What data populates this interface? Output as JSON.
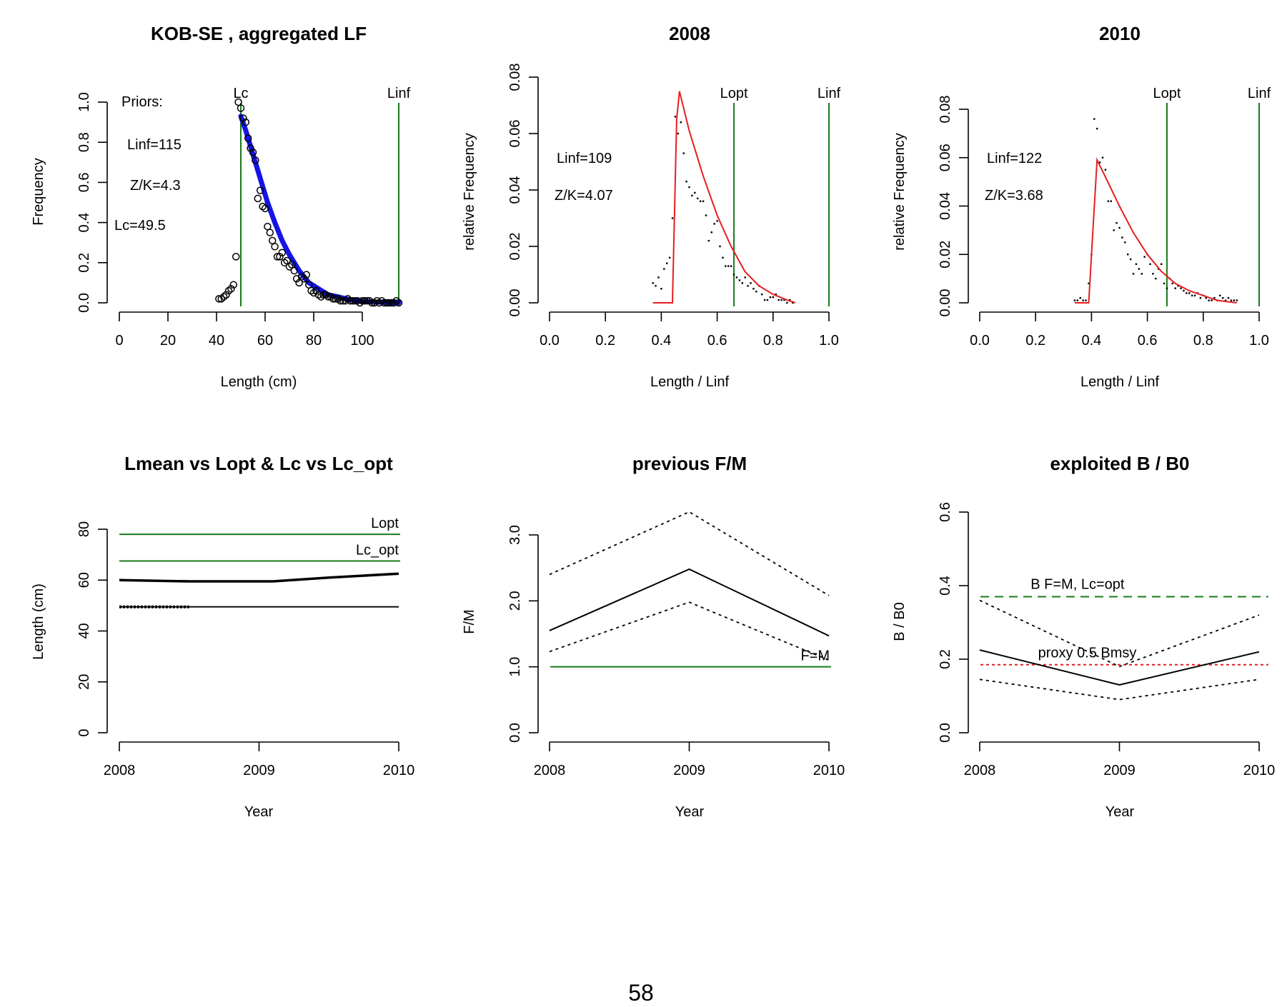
{
  "page_number": "58",
  "chart_data": [
    {
      "type": "scatter",
      "title": "KOB-SE , aggregated LF",
      "xlabel": "Length (cm)",
      "ylabel": "Frequency",
      "xlim": [
        0,
        115
      ],
      "ylim": [
        0,
        1.0
      ],
      "xticks": [
        0,
        20,
        40,
        60,
        80,
        100
      ],
      "yticks": [
        0.0,
        0.2,
        0.4,
        0.6,
        0.8,
        1.0
      ],
      "ytick_labels": [
        "0.0",
        "0.2",
        "0.4",
        "0.6",
        "0.8",
        "1.0"
      ],
      "points": {
        "x": [
          41,
          42,
          43,
          44,
          45,
          46,
          47,
          48,
          49,
          50,
          51,
          52,
          53,
          54,
          55,
          56,
          57,
          58,
          59,
          60,
          61,
          62,
          63,
          64,
          65,
          66,
          67,
          68,
          69,
          70,
          71,
          72,
          73,
          74,
          75,
          76,
          77,
          78,
          79,
          80,
          81,
          82,
          83,
          84,
          85,
          86,
          87,
          88,
          89,
          90,
          91,
          92,
          93,
          94,
          95,
          96,
          97,
          98,
          99,
          100,
          101,
          102,
          103,
          104,
          105,
          106,
          107,
          108,
          109,
          110,
          111,
          112,
          113,
          114,
          115
        ],
        "y": [
          0.02,
          0.02,
          0.03,
          0.04,
          0.06,
          0.07,
          0.09,
          0.23,
          1.0,
          0.97,
          0.92,
          0.9,
          0.82,
          0.77,
          0.75,
          0.71,
          0.52,
          0.56,
          0.48,
          0.47,
          0.38,
          0.35,
          0.31,
          0.28,
          0.23,
          0.23,
          0.25,
          0.2,
          0.21,
          0.18,
          0.19,
          0.16,
          0.12,
          0.1,
          0.13,
          0.12,
          0.14,
          0.09,
          0.06,
          0.05,
          0.06,
          0.04,
          0.03,
          0.04,
          0.04,
          0.03,
          0.03,
          0.02,
          0.02,
          0.02,
          0.01,
          0.01,
          0.01,
          0.02,
          0.01,
          0.01,
          0.01,
          0.01,
          0.0,
          0.01,
          0.01,
          0.01,
          0.01,
          0.0,
          0.0,
          0.01,
          0.0,
          0.01,
          0.0,
          0.0,
          0.0,
          0.0,
          0.0,
          0.01,
          0.0
        ]
      },
      "fit": {
        "x": [
          50,
          52,
          55,
          58,
          61,
          64,
          67,
          70,
          74,
          78,
          82,
          86,
          90,
          95,
          100,
          105,
          110,
          115
        ],
        "y": [
          0.93,
          0.86,
          0.74,
          0.62,
          0.5,
          0.4,
          0.31,
          0.24,
          0.16,
          0.1,
          0.07,
          0.04,
          0.03,
          0.015,
          0.008,
          0.004,
          0.002,
          0.001
        ]
      },
      "vlines": [
        {
          "x": 50,
          "label": "Lc"
        },
        {
          "x": 115,
          "label": "Linf"
        }
      ],
      "annotations": [
        "Priors:",
        "Linf=115",
        "Z/K=4.3",
        "Lc=49.5"
      ]
    },
    {
      "type": "line",
      "title": "2008",
      "xlabel": "Length / Linf",
      "ylabel": "relative Frequency",
      "xlim": [
        0,
        1.0
      ],
      "ylim": [
        0,
        0.08
      ],
      "xticks": [
        0.0,
        0.2,
        0.4,
        0.6,
        0.8,
        1.0
      ],
      "xtick_labels": [
        "0.0",
        "0.2",
        "0.4",
        "0.6",
        "0.8",
        "1.0"
      ],
      "yticks": [
        0.0,
        0.02,
        0.04,
        0.06,
        0.08
      ],
      "ytick_labels": [
        "0.00",
        "0.02",
        "0.04",
        "0.06",
        "0.08"
      ],
      "points": {
        "x": [
          0.37,
          0.38,
          0.39,
          0.4,
          0.41,
          0.42,
          0.43,
          0.44,
          0.45,
          0.46,
          0.47,
          0.48,
          0.49,
          0.5,
          0.51,
          0.52,
          0.53,
          0.54,
          0.55,
          0.56,
          0.57,
          0.58,
          0.59,
          0.6,
          0.61,
          0.62,
          0.63,
          0.64,
          0.65,
          0.66,
          0.67,
          0.68,
          0.69,
          0.7,
          0.71,
          0.72,
          0.73,
          0.74,
          0.75,
          0.76,
          0.77,
          0.78,
          0.79,
          0.8,
          0.81,
          0.82,
          0.83,
          0.84,
          0.85,
          0.86,
          0.87
        ],
        "y": [
          0.007,
          0.006,
          0.009,
          0.005,
          0.012,
          0.014,
          0.016,
          0.03,
          0.066,
          0.06,
          0.064,
          0.053,
          0.043,
          0.041,
          0.038,
          0.039,
          0.037,
          0.036,
          0.036,
          0.031,
          0.022,
          0.025,
          0.028,
          0.029,
          0.02,
          0.016,
          0.013,
          0.013,
          0.013,
          0.01,
          0.009,
          0.008,
          0.007,
          0.009,
          0.006,
          0.007,
          0.005,
          0.004,
          0.006,
          0.003,
          0.001,
          0.001,
          0.002,
          0.002,
          0.003,
          0.001,
          0.001,
          0.001,
          0.0,
          0.001,
          0.0
        ]
      },
      "fit": {
        "x": [
          0.37,
          0.44,
          0.455,
          0.465,
          0.5,
          0.55,
          0.6,
          0.65,
          0.7,
          0.75,
          0.8,
          0.85,
          0.88
        ],
        "y": [
          0.0,
          0.0,
          0.065,
          0.075,
          0.061,
          0.045,
          0.031,
          0.02,
          0.011,
          0.006,
          0.003,
          0.001,
          0.0
        ]
      },
      "vlines": [
        {
          "x": 0.66,
          "label": "Lopt"
        },
        {
          "x": 1.0,
          "label": "Linf"
        }
      ],
      "annotations": [
        "Linf=109",
        "Z/K=4.07"
      ]
    },
    {
      "type": "line",
      "title": "2010",
      "xlabel": "Length / Linf",
      "ylabel": "relative Frequency",
      "xlim": [
        0,
        1.0
      ],
      "ylim": [
        0,
        0.08
      ],
      "xticks": [
        0.0,
        0.2,
        0.4,
        0.6,
        0.8,
        1.0
      ],
      "xtick_labels": [
        "0.0",
        "0.2",
        "0.4",
        "0.6",
        "0.8",
        "1.0"
      ],
      "yticks": [
        0.0,
        0.02,
        0.04,
        0.06,
        0.08
      ],
      "ytick_labels": [
        "0.00",
        "0.02",
        "0.04",
        "0.06",
        "0.08"
      ],
      "points": {
        "x": [
          0.34,
          0.35,
          0.36,
          0.37,
          0.38,
          0.39,
          0.4,
          0.41,
          0.42,
          0.43,
          0.44,
          0.45,
          0.46,
          0.47,
          0.48,
          0.49,
          0.5,
          0.51,
          0.52,
          0.53,
          0.54,
          0.55,
          0.56,
          0.57,
          0.58,
          0.59,
          0.6,
          0.61,
          0.62,
          0.63,
          0.64,
          0.65,
          0.66,
          0.67,
          0.68,
          0.69,
          0.7,
          0.71,
          0.72,
          0.73,
          0.74,
          0.75,
          0.76,
          0.77,
          0.78,
          0.79,
          0.8,
          0.81,
          0.82,
          0.83,
          0.84,
          0.85,
          0.86,
          0.87,
          0.88,
          0.89,
          0.9,
          0.91,
          0.92
        ],
        "y": [
          0.001,
          0.001,
          0.002,
          0.001,
          0.001,
          0.008,
          0.02,
          0.076,
          0.072,
          0.058,
          0.06,
          0.055,
          0.042,
          0.042,
          0.03,
          0.033,
          0.031,
          0.027,
          0.025,
          0.02,
          0.018,
          0.012,
          0.016,
          0.014,
          0.012,
          0.019,
          0.02,
          0.016,
          0.012,
          0.01,
          0.014,
          0.016,
          0.008,
          0.006,
          0.01,
          0.008,
          0.006,
          0.007,
          0.006,
          0.005,
          0.004,
          0.004,
          0.003,
          0.003,
          0.004,
          0.002,
          0.003,
          0.002,
          0.001,
          0.001,
          0.002,
          0.001,
          0.003,
          0.002,
          0.001,
          0.002,
          0.001,
          0.001,
          0.001
        ]
      },
      "fit": {
        "x": [
          0.34,
          0.39,
          0.405,
          0.42,
          0.45,
          0.5,
          0.55,
          0.6,
          0.65,
          0.7,
          0.75,
          0.8,
          0.85,
          0.92
        ],
        "y": [
          0.0,
          0.0,
          0.03,
          0.059,
          0.052,
          0.04,
          0.029,
          0.02,
          0.013,
          0.008,
          0.005,
          0.003,
          0.001,
          0.0
        ]
      },
      "vlines": [
        {
          "x": 0.67,
          "label": "Lopt"
        },
        {
          "x": 1.0,
          "label": "Linf"
        }
      ],
      "annotations": [
        "Linf=122",
        "Z/K=3.68"
      ]
    },
    {
      "type": "line",
      "title": "Lmean vs Lopt & Lc vs Lc_opt",
      "xlabel": "Year",
      "ylabel": "Length (cm)",
      "xlim": [
        2008,
        2010
      ],
      "ylim": [
        0,
        80
      ],
      "xticks": [
        2008,
        2009,
        2010
      ],
      "yticks": [
        0,
        20,
        40,
        60,
        80
      ],
      "series": [
        {
          "x": [
            2008,
            2008.5,
            2009.1,
            2009.5,
            2010
          ],
          "y": [
            60,
            59.5,
            59.5,
            61,
            62.5
          ]
        },
        {
          "x": [
            2008,
            2008.5,
            2010
          ],
          "y": [
            49.5,
            49.5,
            49.5
          ]
        }
      ],
      "hlines": [
        {
          "y": 78,
          "label": "Lopt"
        },
        {
          "y": 67.5,
          "label": "Lc_opt"
        }
      ]
    },
    {
      "type": "line",
      "title": "previous F/M",
      "xlabel": "Year",
      "ylabel": "F/M",
      "xlim": [
        2008,
        2010
      ],
      "ylim": [
        0,
        3.0
      ],
      "xticks": [
        2008,
        2009,
        2010
      ],
      "yticks": [
        0.0,
        1.0,
        2.0,
        3.0
      ],
      "ytick_labels": [
        "0.0",
        "1.0",
        "2.0",
        "3.0"
      ],
      "series": [
        {
          "x": [
            2008,
            2009,
            2010
          ],
          "y": [
            1.55,
            2.48,
            1.47
          ]
        },
        {
          "x": [
            2008,
            2009,
            2010
          ],
          "y": [
            2.4,
            3.35,
            2.08
          ]
        },
        {
          "x": [
            2008,
            2009,
            2010
          ],
          "y": [
            1.23,
            1.98,
            1.1
          ]
        }
      ],
      "hlines": [
        {
          "y": 1.0,
          "label": "F=M"
        }
      ]
    },
    {
      "type": "line",
      "title": "exploited B / B0",
      "xlabel": "Year",
      "ylabel": "B / B0",
      "xlim": [
        2008,
        2010
      ],
      "ylim": [
        0,
        0.6
      ],
      "xticks": [
        2008,
        2009,
        2010
      ],
      "yticks": [
        0.0,
        0.2,
        0.4,
        0.6
      ],
      "ytick_labels": [
        "0.0",
        "0.2",
        "0.4",
        "0.6"
      ],
      "series": [
        {
          "x": [
            2008,
            2009,
            2010
          ],
          "y": [
            0.225,
            0.13,
            0.22
          ]
        },
        {
          "x": [
            2008,
            2009,
            2010
          ],
          "y": [
            0.36,
            0.18,
            0.32
          ]
        },
        {
          "x": [
            2008,
            2009,
            2010
          ],
          "y": [
            0.145,
            0.09,
            0.145
          ]
        }
      ],
      "hlines": [
        {
          "y": 0.37,
          "label": "B F=M, Lc=opt"
        },
        {
          "y": 0.185,
          "label": "proxy 0.5 Bmsy"
        }
      ]
    }
  ]
}
